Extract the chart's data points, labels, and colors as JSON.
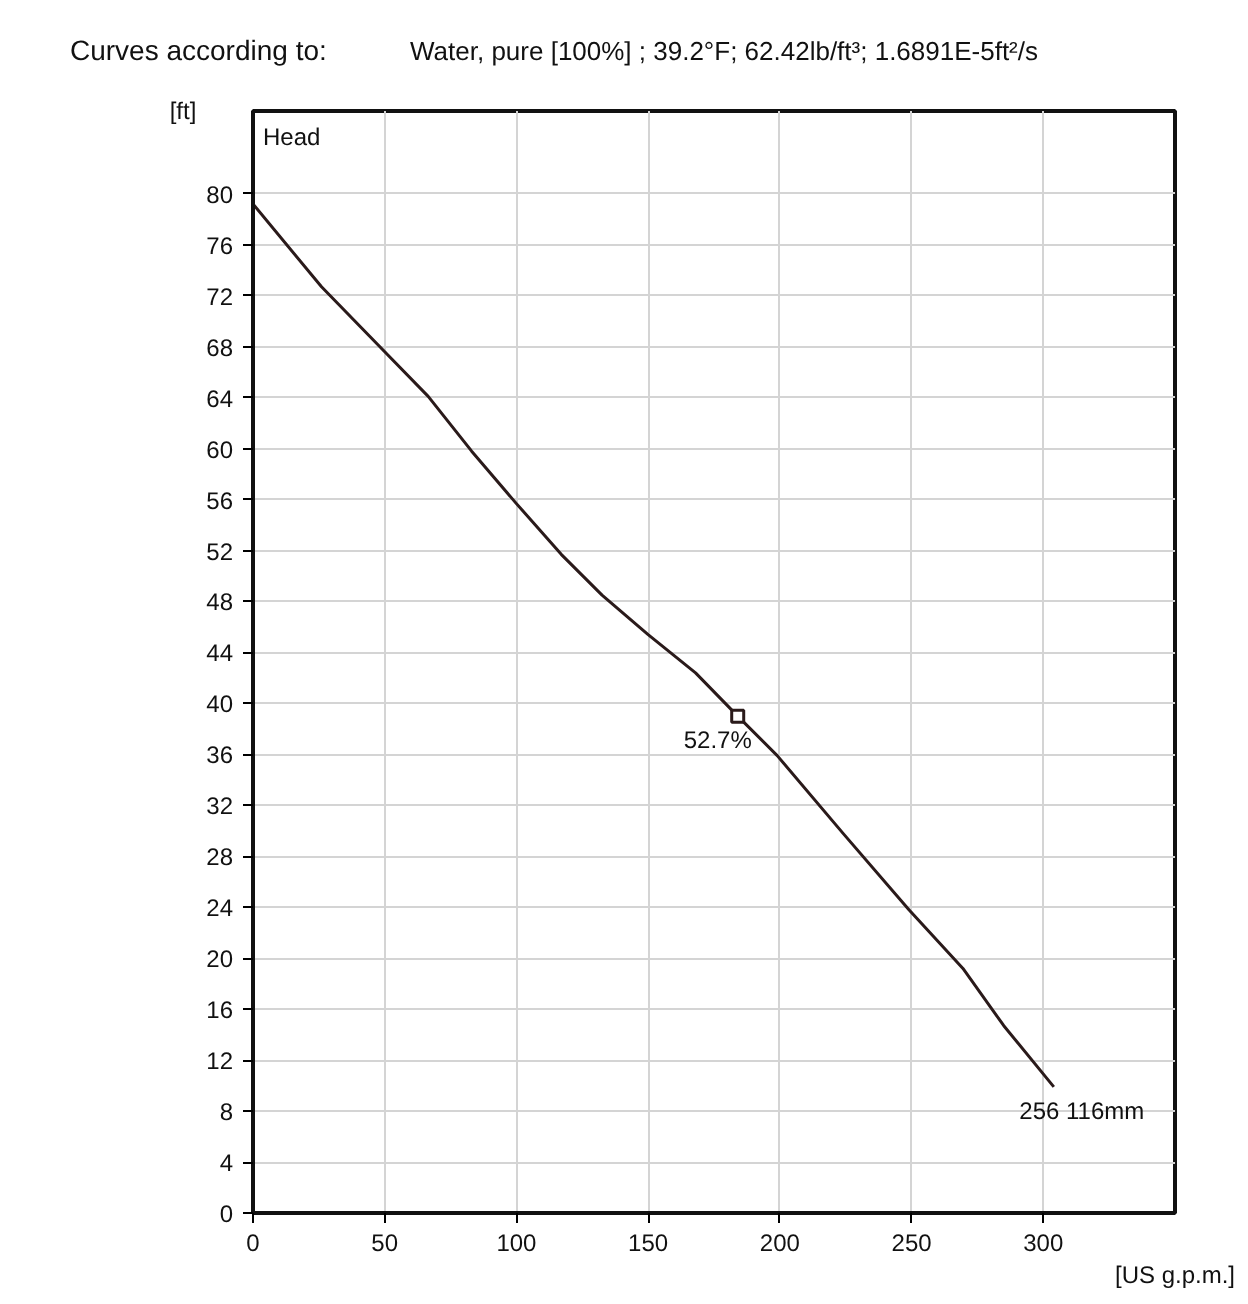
{
  "chart_data": {
    "type": "line",
    "title": "Curves according to:",
    "subtitle": "Water, pure [100%] ; 39.2°F; 62.42lb/ft³; 1.6891E-5ft²/s",
    "xlabel": "[US g.p.m.]",
    "ylabel": "[ft]",
    "series": [
      {
        "type": "line",
        "color": "#2a1a1a",
        "x": [
          0,
          26,
          50,
          66.5,
          83,
          99.5,
          117,
          132.5,
          150,
          168,
          184,
          199,
          224,
          249,
          269.5,
          285,
          304
        ],
        "values": [
          79.2,
          72.7,
          67.6,
          64.1,
          59.8,
          55.8,
          51.7,
          48.5,
          45.4,
          42.4,
          39,
          35.9,
          29.8,
          23.8,
          19.2,
          14.7,
          9.9
        ]
      },
      {
        "type": "scatter",
        "marker": "square",
        "color": "#2a1a1a",
        "x": [
          184
        ],
        "values": [
          39
        ]
      }
    ],
    "annotations": [
      "Head",
      {
        "text": "52.7%",
        "x": 184,
        "y": 39
      },
      {
        "text": "256 116mm",
        "x": 304,
        "y": 9.9
      }
    ],
    "xlim": [
      0,
      350
    ],
    "ylim": [
      0,
      86.5
    ],
    "xticks": [
      0,
      50,
      100,
      150,
      200,
      250,
      300
    ],
    "yticks": [
      0,
      4,
      8,
      12,
      16,
      20,
      24,
      28,
      32,
      36,
      40,
      44,
      48,
      52,
      56,
      60,
      64,
      68,
      72,
      76,
      80
    ],
    "grid": true
  }
}
